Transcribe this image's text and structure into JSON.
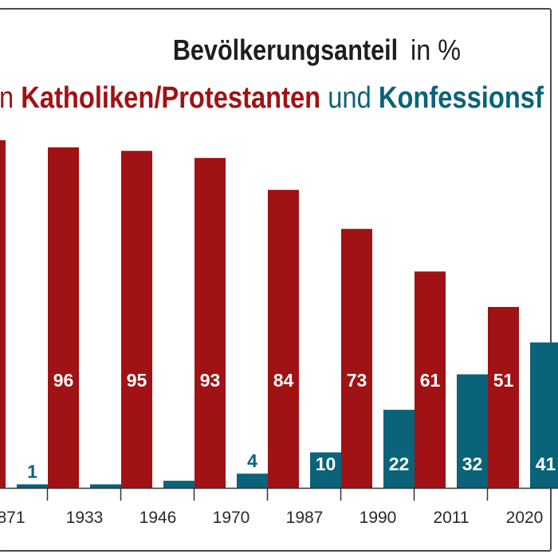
{
  "title": {
    "bold": "Bevölkerungsanteil",
    "light": "in %"
  },
  "subtitle": {
    "lead": "n",
    "group1": "Katholiken/Protestanten",
    "connector": "und",
    "group2": "Konfessionsf"
  },
  "colors": {
    "catholic_protestant": "#a01214",
    "unaffiliated": "#0a6378",
    "axis": "#333333"
  },
  "chart_data": {
    "type": "bar",
    "categories": [
      "871",
      "1933",
      "1946",
      "1970",
      "1987",
      "1990",
      "2011",
      "2020"
    ],
    "series": [
      {
        "name": "Katholiken/Protestanten",
        "values": [
          98,
          96,
          95,
          93,
          84,
          73,
          61,
          51
        ],
        "labels": [
          "",
          "96",
          "95",
          "93",
          "84",
          "73",
          "61",
          "51"
        ]
      },
      {
        "name": "Konfessionsf",
        "values": [
          1,
          1,
          2,
          4,
          10,
          22,
          32,
          41
        ],
        "labels": [
          "1",
          "",
          "",
          "4",
          "10",
          "22",
          "32",
          "41"
        ]
      }
    ],
    "ylim": [
      0,
      100
    ],
    "grid": false,
    "legend": "subtitle"
  }
}
